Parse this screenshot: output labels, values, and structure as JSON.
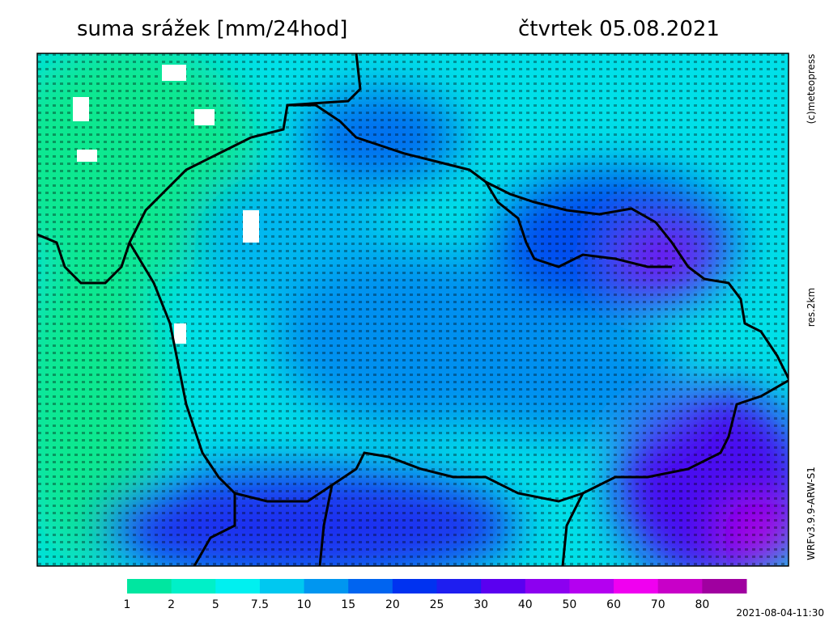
{
  "header": {
    "title": "suma srážek [mm/24hod]",
    "date": "čtvrtek 05.08.2021"
  },
  "side": {
    "copyright": "(c)meteopress",
    "resolution": "res.2km",
    "model": "WRFv3.9.9-ARW-S1"
  },
  "legend": {
    "labels": [
      1,
      2,
      5,
      7.5,
      10,
      15,
      20,
      25,
      30,
      40,
      50,
      60,
      70,
      80
    ],
    "colors": [
      "#00e6a0",
      "#00f0c8",
      "#00f0f0",
      "#00c8f0",
      "#0096f0",
      "#0064f0",
      "#0032f0",
      "#1e1ef0",
      "#5a00f0",
      "#8c00f0",
      "#b400f0",
      "#f000f0",
      "#c800c8",
      "#a000a0"
    ]
  },
  "footer": {
    "timestamp": "2021-08-04-11:30"
  }
}
